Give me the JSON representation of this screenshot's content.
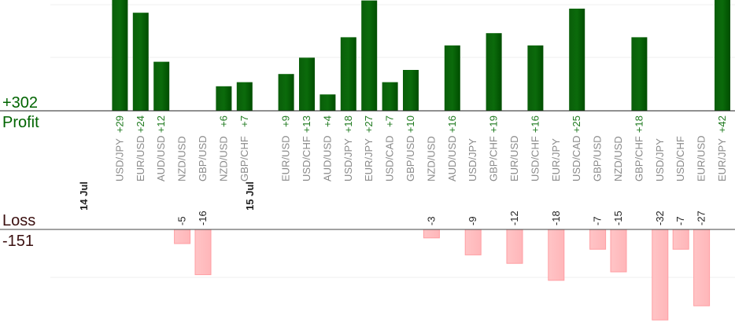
{
  "summary": {
    "profit_total": "+302",
    "profit_label": "Profit",
    "loss_label": "Loss",
    "loss_total": "-151"
  },
  "chart_data": {
    "type": "bar",
    "title": "",
    "xlabel": "",
    "ylabel": "",
    "colors": {
      "profit": "#0b6b0b",
      "loss": "#ffb6b9",
      "profit_text": "#1f7a1f",
      "loss_text": "#222222",
      "date_text": "#222222",
      "category_text": "#8a8a8a"
    },
    "groups": [
      {
        "date": "14 Jul",
        "trades": [
          {
            "pair": "USD/JPY",
            "value": 29,
            "label": "+29"
          },
          {
            "pair": "EUR/USD",
            "value": 24,
            "label": "+24"
          },
          {
            "pair": "AUD/USD",
            "value": 12,
            "label": "+12"
          },
          {
            "pair": "NZD/USD",
            "value": -5,
            "label": "-5"
          },
          {
            "pair": "GBP/USD",
            "value": -16,
            "label": "-16"
          },
          {
            "pair": "NZD/USD",
            "value": 6,
            "label": "+6"
          },
          {
            "pair": "GBP/CHF",
            "value": 7,
            "label": "+7"
          }
        ]
      },
      {
        "date": "15 Jul",
        "trades": [
          {
            "pair": "EUR/USD",
            "value": 9,
            "label": "+9"
          },
          {
            "pair": "USD/CHF",
            "value": 13,
            "label": "+13"
          },
          {
            "pair": "AUD/USD",
            "value": 4,
            "label": "+4"
          },
          {
            "pair": "USD/JPY",
            "value": 18,
            "label": "+18"
          },
          {
            "pair": "EUR/JPY",
            "value": 27,
            "label": "+27"
          },
          {
            "pair": "USD/CAD",
            "value": 7,
            "label": "+7"
          },
          {
            "pair": "GBP/USD",
            "value": 10,
            "label": "+10"
          },
          {
            "pair": "NZD/USD",
            "value": -3,
            "label": "-3"
          },
          {
            "pair": "AUD/USD",
            "value": 16,
            "label": "+16"
          },
          {
            "pair": "USD/JPY",
            "value": -9,
            "label": "-9"
          },
          {
            "pair": "GBP/CHF",
            "value": 19,
            "label": "+19"
          },
          {
            "pair": "EUR/USD",
            "value": -12,
            "label": "-12"
          },
          {
            "pair": "USD/CHF",
            "value": 16,
            "label": "+16"
          },
          {
            "pair": "EUR/JPY",
            "value": -18,
            "label": "-18"
          },
          {
            "pair": "USD/CAD",
            "value": 25,
            "label": "+25"
          },
          {
            "pair": "GBP/USD",
            "value": -7,
            "label": "-7"
          },
          {
            "pair": "NZD/USD",
            "value": -15,
            "label": "-15"
          },
          {
            "pair": "GBP/CHF",
            "value": 18,
            "label": "+18"
          },
          {
            "pair": "USD/JPY",
            "value": -32,
            "label": "-32"
          },
          {
            "pair": "USD/CHF",
            "value": -7,
            "label": "-7"
          },
          {
            "pair": "EUR/USD",
            "value": -27,
            "label": "-27"
          },
          {
            "pair": "EUR/JPY",
            "value": 42,
            "label": "+42"
          }
        ]
      }
    ]
  }
}
